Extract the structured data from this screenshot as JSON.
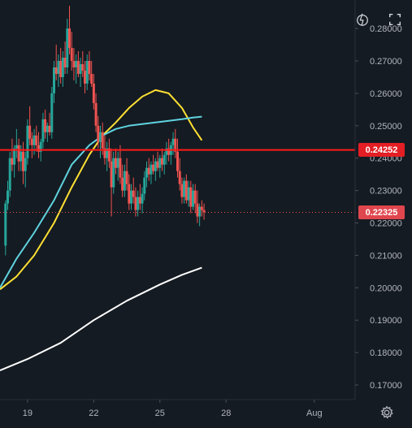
{
  "toolbar": {
    "indicator_icon": "indicator-lightning-icon",
    "fullscreen_icon": "fullscreen-icon"
  },
  "footer": {
    "settings_icon": "gear-icon"
  },
  "price_tags": {
    "horizontal_line": "0.24252",
    "last_price": "0.22325"
  },
  "colors": {
    "background": "#151b22",
    "up_candle": "#26a69a",
    "down_candle": "#ef5350",
    "horizontal_line": "#ff1a1a",
    "ma_yellow": "#ffe033",
    "ma_cyan": "#5fd3e0",
    "ma_white": "#ffffff",
    "axis_text": "#b2b5be"
  },
  "chart_data": {
    "type": "candlestick",
    "y_axis_ticks": [
      "0.28000",
      "0.27000",
      "0.26000",
      "0.25000",
      "0.24000",
      "0.23000",
      "0.22000",
      "0.21000",
      "0.20000",
      "0.19000",
      "0.18000",
      "0.17000"
    ],
    "x_axis_ticks": [
      {
        "label": "19",
        "day": 19
      },
      {
        "label": "22",
        "day": 22
      },
      {
        "label": "25",
        "day": 25
      },
      {
        "label": "28",
        "day": 28
      },
      {
        "label": "Aug",
        "day": 32
      }
    ],
    "ylim": [
      0.1655,
      0.2888
    ],
    "xlim": [
      17.75,
      33.85
    ],
    "horizontal_line": 0.24252,
    "last_price": 0.22325,
    "candles": [
      [
        18.0,
        0.213,
        0.227,
        0.21,
        0.226
      ],
      [
        18.1,
        0.226,
        0.233,
        0.224,
        0.23
      ],
      [
        18.2,
        0.23,
        0.242,
        0.228,
        0.24
      ],
      [
        18.3,
        0.24,
        0.246,
        0.236,
        0.238
      ],
      [
        18.4,
        0.238,
        0.244,
        0.234,
        0.243
      ],
      [
        18.5,
        0.243,
        0.249,
        0.24,
        0.244
      ],
      [
        18.6,
        0.244,
        0.246,
        0.236,
        0.239
      ],
      [
        18.7,
        0.239,
        0.244,
        0.236,
        0.242
      ],
      [
        18.8,
        0.242,
        0.245,
        0.232,
        0.236
      ],
      [
        18.9,
        0.236,
        0.242,
        0.231,
        0.24
      ],
      [
        19.0,
        0.24,
        0.252,
        0.238,
        0.25
      ],
      [
        19.1,
        0.25,
        0.256,
        0.244,
        0.246
      ],
      [
        19.2,
        0.246,
        0.248,
        0.24,
        0.244
      ],
      [
        19.3,
        0.244,
        0.249,
        0.241,
        0.247
      ],
      [
        19.4,
        0.247,
        0.25,
        0.242,
        0.244
      ],
      [
        19.5,
        0.244,
        0.248,
        0.24,
        0.242
      ],
      [
        19.6,
        0.242,
        0.246,
        0.239,
        0.245
      ],
      [
        19.7,
        0.245,
        0.254,
        0.243,
        0.252
      ],
      [
        19.8,
        0.252,
        0.255,
        0.246,
        0.248
      ],
      [
        19.9,
        0.248,
        0.251,
        0.245,
        0.25
      ],
      [
        20.0,
        0.25,
        0.254,
        0.247,
        0.248
      ],
      [
        20.1,
        0.248,
        0.262,
        0.246,
        0.26
      ],
      [
        20.2,
        0.26,
        0.27,
        0.257,
        0.268
      ],
      [
        20.3,
        0.268,
        0.275,
        0.264,
        0.266
      ],
      [
        20.4,
        0.266,
        0.272,
        0.262,
        0.27
      ],
      [
        20.5,
        0.27,
        0.274,
        0.263,
        0.265
      ],
      [
        20.6,
        0.265,
        0.273,
        0.262,
        0.271
      ],
      [
        20.7,
        0.271,
        0.276,
        0.266,
        0.268
      ],
      [
        20.8,
        0.268,
        0.283,
        0.266,
        0.28
      ],
      [
        20.9,
        0.28,
        0.287,
        0.272,
        0.274
      ],
      [
        21.0,
        0.274,
        0.279,
        0.267,
        0.27
      ],
      [
        21.1,
        0.27,
        0.274,
        0.264,
        0.268
      ],
      [
        21.2,
        0.268,
        0.272,
        0.263,
        0.27
      ],
      [
        21.3,
        0.27,
        0.273,
        0.265,
        0.266
      ],
      [
        21.4,
        0.266,
        0.271,
        0.262,
        0.269
      ],
      [
        21.5,
        0.269,
        0.273,
        0.265,
        0.267
      ],
      [
        21.6,
        0.267,
        0.27,
        0.26,
        0.263
      ],
      [
        21.7,
        0.263,
        0.272,
        0.261,
        0.27
      ],
      [
        21.8,
        0.27,
        0.273,
        0.264,
        0.266
      ],
      [
        21.9,
        0.266,
        0.27,
        0.262,
        0.263
      ],
      [
        22.0,
        0.263,
        0.266,
        0.255,
        0.257
      ],
      [
        22.1,
        0.257,
        0.26,
        0.248,
        0.25
      ],
      [
        22.2,
        0.25,
        0.253,
        0.243,
        0.245
      ],
      [
        22.3,
        0.245,
        0.25,
        0.24,
        0.248
      ],
      [
        22.4,
        0.248,
        0.251,
        0.241,
        0.243
      ],
      [
        22.5,
        0.243,
        0.247,
        0.238,
        0.24
      ],
      [
        22.6,
        0.24,
        0.245,
        0.236,
        0.243
      ],
      [
        22.7,
        0.243,
        0.246,
        0.237,
        0.239
      ],
      [
        22.8,
        0.239,
        0.243,
        0.222,
        0.231
      ],
      [
        22.9,
        0.231,
        0.242,
        0.229,
        0.24
      ],
      [
        23.0,
        0.24,
        0.243,
        0.235,
        0.237
      ],
      [
        23.1,
        0.237,
        0.242,
        0.233,
        0.24
      ],
      [
        23.2,
        0.24,
        0.244,
        0.232,
        0.234
      ],
      [
        23.3,
        0.234,
        0.238,
        0.228,
        0.23
      ],
      [
        23.4,
        0.23,
        0.238,
        0.228,
        0.236
      ],
      [
        23.5,
        0.236,
        0.24,
        0.23,
        0.232
      ],
      [
        23.6,
        0.232,
        0.235,
        0.224,
        0.226
      ],
      [
        23.7,
        0.226,
        0.232,
        0.224,
        0.23
      ],
      [
        23.8,
        0.23,
        0.234,
        0.226,
        0.228
      ],
      [
        23.9,
        0.228,
        0.231,
        0.222,
        0.224
      ],
      [
        24.0,
        0.224,
        0.23,
        0.222,
        0.228
      ],
      [
        24.1,
        0.228,
        0.232,
        0.224,
        0.226
      ],
      [
        24.2,
        0.226,
        0.231,
        0.223,
        0.229
      ],
      [
        24.3,
        0.229,
        0.236,
        0.227,
        0.234
      ],
      [
        24.4,
        0.234,
        0.239,
        0.231,
        0.237
      ],
      [
        24.5,
        0.237,
        0.24,
        0.233,
        0.235
      ],
      [
        24.6,
        0.235,
        0.239,
        0.232,
        0.238
      ],
      [
        24.7,
        0.238,
        0.241,
        0.235,
        0.236
      ],
      [
        24.8,
        0.236,
        0.24,
        0.233,
        0.239
      ],
      [
        24.9,
        0.239,
        0.242,
        0.236,
        0.237
      ],
      [
        25.0,
        0.237,
        0.241,
        0.234,
        0.24
      ],
      [
        25.1,
        0.24,
        0.243,
        0.236,
        0.238
      ],
      [
        25.2,
        0.238,
        0.242,
        0.235,
        0.241
      ],
      [
        25.3,
        0.241,
        0.245,
        0.238,
        0.243
      ],
      [
        25.4,
        0.243,
        0.246,
        0.239,
        0.241
      ],
      [
        25.5,
        0.241,
        0.245,
        0.238,
        0.244
      ],
      [
        25.6,
        0.244,
        0.248,
        0.241,
        0.246
      ],
      [
        25.7,
        0.246,
        0.249,
        0.24,
        0.242
      ],
      [
        25.8,
        0.242,
        0.246,
        0.234,
        0.236
      ],
      [
        25.9,
        0.236,
        0.24,
        0.23,
        0.232
      ],
      [
        26.0,
        0.232,
        0.234,
        0.226,
        0.228
      ],
      [
        26.1,
        0.228,
        0.234,
        0.226,
        0.233
      ],
      [
        26.2,
        0.233,
        0.235,
        0.226,
        0.227
      ],
      [
        26.3,
        0.227,
        0.233,
        0.225,
        0.231
      ],
      [
        26.4,
        0.231,
        0.233,
        0.223,
        0.225
      ],
      [
        26.5,
        0.225,
        0.232,
        0.224,
        0.23
      ],
      [
        26.6,
        0.23,
        0.232,
        0.223,
        0.226
      ],
      [
        26.7,
        0.226,
        0.23,
        0.22,
        0.222
      ],
      [
        26.8,
        0.222,
        0.226,
        0.219,
        0.225
      ],
      [
        26.9,
        0.225,
        0.227,
        0.222,
        0.224
      ],
      [
        27.0,
        0.224,
        0.226,
        0.221,
        0.2233
      ]
    ],
    "series": [
      {
        "name": "",
        "color": "#ffe033",
        "x": [
          17.75,
          18.5,
          19.3,
          20.2,
          21.0,
          21.8,
          22.4,
          23.0,
          23.6,
          24.2,
          24.8,
          25.4,
          26.0,
          26.5,
          26.9
        ],
        "y": [
          0.1995,
          0.2035,
          0.21,
          0.22,
          0.231,
          0.241,
          0.247,
          0.251,
          0.2555,
          0.259,
          0.261,
          0.26,
          0.2555,
          0.2495,
          0.2455
        ]
      },
      {
        "name": "",
        "color": "#5fd3e0",
        "x": [
          17.75,
          18.5,
          19.3,
          20.2,
          21.0,
          21.8,
          22.4,
          23.0,
          23.6,
          24.2,
          24.8,
          25.4,
          26.0,
          26.5,
          26.9
        ],
        "y": [
          0.2,
          0.209,
          0.217,
          0.227,
          0.238,
          0.244,
          0.247,
          0.249,
          0.25,
          0.2505,
          0.251,
          0.2515,
          0.252,
          0.2525,
          0.2528
        ]
      },
      {
        "name": "",
        "color": "#ffffff",
        "x": [
          17.75,
          19.0,
          20.5,
          22.0,
          23.5,
          25.0,
          26.0,
          26.9
        ],
        "y": [
          0.1745,
          0.178,
          0.183,
          0.19,
          0.196,
          0.201,
          0.204,
          0.2062
        ]
      }
    ]
  }
}
